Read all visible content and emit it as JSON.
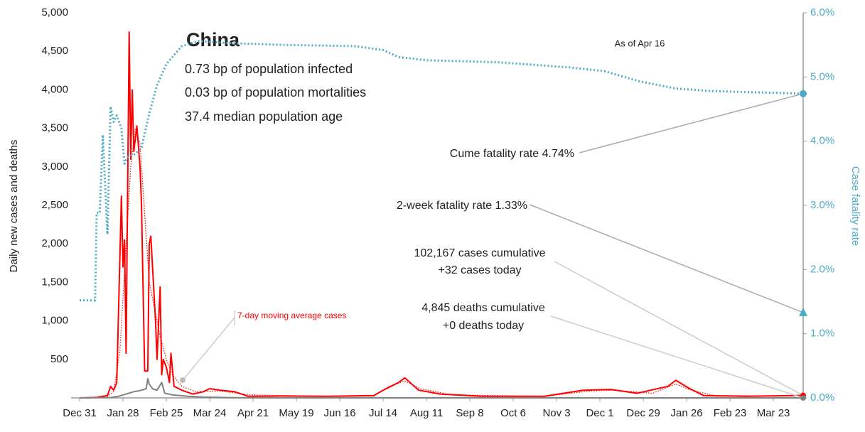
{
  "chart_data": {
    "type": "line",
    "title": "China",
    "info": [
      "0.73 bp of population infected",
      "0.03 bp of population mortalities",
      "37.4 median population age"
    ],
    "date_note": "As of Apr 16",
    "y_label": "Daily new cases and deaths",
    "y2_label": "Case fatality rate",
    "xlim": [
      0,
      470
    ],
    "xticks": [
      {
        "value": 0,
        "label": "Dec 31"
      },
      {
        "value": 28,
        "label": "Jan 28"
      },
      {
        "value": 56,
        "label": "Feb 25"
      },
      {
        "value": 84,
        "label": "Mar 24"
      },
      {
        "value": 112,
        "label": "Apr 21"
      },
      {
        "value": 140,
        "label": "May 19"
      },
      {
        "value": 168,
        "label": "Jun 16"
      },
      {
        "value": 196,
        "label": "Jul 14"
      },
      {
        "value": 224,
        "label": "Aug 11"
      },
      {
        "value": 252,
        "label": "Sep 8"
      },
      {
        "value": 280,
        "label": "Oct 6"
      },
      {
        "value": 308,
        "label": "Nov 3"
      },
      {
        "value": 336,
        "label": "Dec 1"
      },
      {
        "value": 364,
        "label": "Dec 29"
      },
      {
        "value": 392,
        "label": "Jan 26"
      },
      {
        "value": 420,
        "label": "Feb 23"
      },
      {
        "value": 448,
        "label": "Mar 23"
      }
    ],
    "ylim": [
      0,
      5000
    ],
    "yticks": [
      500,
      {
        "value": 1000,
        "label": "1,000"
      },
      {
        "value": 1500,
        "label": "1,500"
      },
      {
        "value": 2000,
        "label": "2,000"
      },
      {
        "value": 2500,
        "label": "2,500"
      },
      {
        "value": 3000,
        "label": "3,000"
      },
      {
        "value": 3500,
        "label": "3,500"
      },
      {
        "value": 4000,
        "label": "4,000"
      },
      {
        "value": 4500,
        "label": "4,500"
      },
      {
        "value": 5000,
        "label": "5,000"
      }
    ],
    "y2lim": [
      0,
      6
    ],
    "y2ticks": [
      {
        "value": 0,
        "label": "0.0%"
      },
      {
        "value": 1,
        "label": "1.0%"
      },
      {
        "value": 2,
        "label": "2.0%"
      },
      {
        "value": 3,
        "label": "3.0%"
      },
      {
        "value": 4,
        "label": "4.0%"
      },
      {
        "value": 5,
        "label": "5.0%"
      },
      {
        "value": 6,
        "label": "6.0%"
      }
    ],
    "series": [
      {
        "color": "#ff0000",
        "style": "solid",
        "x": [
          0,
          10,
          18,
          20,
          22,
          24,
          27,
          28,
          29,
          30,
          32,
          33,
          34,
          35,
          37,
          39,
          40,
          42,
          44,
          45,
          46,
          49,
          50,
          52,
          53,
          54,
          56,
          58,
          59,
          61,
          66,
          73,
          80,
          84,
          91,
          100,
          109,
          130,
          160,
          190,
          196,
          206,
          210,
          219,
          233,
          260,
          300,
          325,
          343,
          360,
          380,
          385,
          394,
          403,
          430,
          468
        ],
        "values": [
          0,
          5,
          30,
          150,
          100,
          200,
          2620,
          1700,
          2050,
          580,
          4750,
          3100,
          4000,
          3200,
          3530,
          3000,
          2500,
          350,
          350,
          2000,
          2100,
          1000,
          500,
          1440,
          300,
          500,
          400,
          200,
          580,
          150,
          100,
          50,
          80,
          120,
          100,
          80,
          20,
          25,
          20,
          30,
          100,
          200,
          260,
          100,
          50,
          20,
          20,
          100,
          110,
          60,
          150,
          230,
          120,
          30,
          20,
          32
        ]
      },
      {
        "name": "7-day moving average cases",
        "color": "#ff0000",
        "style": "dotted",
        "x": [
          0,
          18,
          22,
          26,
          30,
          33,
          36,
          39,
          42,
          45,
          48,
          52,
          56,
          60,
          66,
          75,
          90,
          110,
          150,
          190,
          200,
          210,
          220,
          240,
          300,
          330,
          345,
          370,
          385,
          395,
          410,
          468
        ],
        "values": [
          0,
          20,
          80,
          600,
          2000,
          3000,
          3500,
          3300,
          2400,
          1500,
          1200,
          800,
          500,
          300,
          150,
          80,
          90,
          40,
          20,
          25,
          150,
          220,
          120,
          40,
          20,
          90,
          100,
          60,
          180,
          100,
          30,
          25
        ]
      },
      {
        "color": "#808080",
        "style": "solid",
        "x": [
          0,
          20,
          25,
          30,
          35,
          40,
          43,
          44,
          45,
          47,
          50,
          53,
          55,
          60,
          70,
          80,
          100,
          468
        ],
        "values": [
          0,
          5,
          20,
          50,
          80,
          100,
          120,
          250,
          180,
          120,
          100,
          200,
          60,
          40,
          20,
          10,
          2,
          0
        ]
      },
      {
        "color": "#4bacc6",
        "style": "dotted",
        "axis": "y2",
        "x": [
          0,
          10,
          11,
          13,
          15,
          16,
          18,
          20,
          22,
          24,
          27,
          29,
          31,
          36,
          40,
          45,
          50,
          56,
          66,
          77,
          95,
          132,
          178,
          196,
          206,
          224,
          270,
          316,
          339,
          362,
          385,
          408,
          467
        ],
        "values": [
          1.52,
          1.52,
          2.88,
          2.88,
          4.1,
          3.55,
          2.55,
          4.54,
          4.3,
          4.4,
          4.2,
          3.65,
          3.75,
          3.8,
          3.9,
          4.43,
          4.87,
          5.2,
          5.48,
          5.56,
          5.53,
          5.5,
          5.48,
          5.42,
          5.31,
          5.26,
          5.23,
          5.15,
          5.09,
          4.93,
          4.82,
          4.78,
          4.74
        ]
      }
    ],
    "callouts": [
      {
        "text": "Cume fatality rate 4.74%",
        "value": 4.74,
        "axis": "y2",
        "marker": "circle",
        "color": "#4bacc6"
      },
      {
        "text": "2-week fatality rate 1.33%",
        "value": 1.33,
        "axis": "y2",
        "marker": "triangle",
        "color": "#4bacc6"
      },
      {
        "text": "102,167 cases cumulative",
        "sub": "+32 cases today",
        "value": 32,
        "axis": "y",
        "marker": "circle",
        "color": "#ff0000"
      },
      {
        "text": "4,845 deaths cumulative",
        "sub": "+0 deaths today",
        "value": 0,
        "axis": "y",
        "marker": "circle",
        "color": "#808080"
      }
    ]
  }
}
